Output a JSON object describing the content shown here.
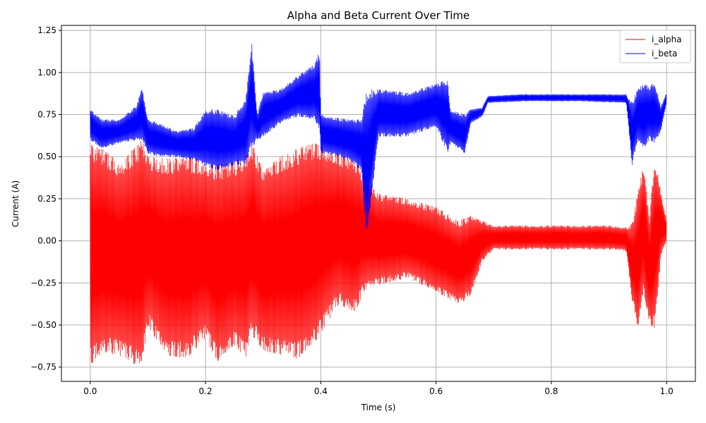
{
  "chart_data": {
    "type": "line",
    "title": "Alpha and Beta Current Over Time",
    "xlabel": "Time (s)",
    "ylabel": "Current (A)",
    "xlim": [
      -0.05,
      1.05
    ],
    "ylim": [
      -0.835,
      1.28
    ],
    "x_ticks": [
      0.0,
      0.2,
      0.4,
      0.6,
      0.8,
      1.0
    ],
    "x_tick_labels": [
      "0.0",
      "0.2",
      "0.4",
      "0.6",
      "0.8",
      "1.0"
    ],
    "y_ticks": [
      -0.75,
      -0.5,
      -0.25,
      0.0,
      0.25,
      0.5,
      0.75,
      1.0,
      1.25
    ],
    "y_tick_labels": [
      "−0.75",
      "−0.50",
      "−0.25",
      "0.00",
      "0.25",
      "0.50",
      "0.75",
      "1.00",
      "1.25"
    ],
    "grid": true,
    "legend_position": "top-right",
    "series": [
      {
        "name": "i_alpha",
        "color": "#ff0000",
        "envelope": {
          "t": [
            0.0,
            0.02,
            0.05,
            0.08,
            0.09,
            0.1,
            0.13,
            0.17,
            0.2,
            0.22,
            0.25,
            0.27,
            0.28,
            0.3,
            0.33,
            0.36,
            0.39,
            0.4,
            0.43,
            0.46,
            0.475,
            0.5,
            0.55,
            0.6,
            0.64,
            0.66,
            0.68,
            0.7,
            0.8,
            0.9,
            0.93,
            0.94,
            0.95,
            0.96,
            0.97,
            0.98,
            0.99,
            1.0
          ],
          "max": [
            0.57,
            0.55,
            0.47,
            0.56,
            0.6,
            0.5,
            0.49,
            0.5,
            0.47,
            0.45,
            0.47,
            0.52,
            0.59,
            0.42,
            0.5,
            0.55,
            0.58,
            0.57,
            0.52,
            0.47,
            0.4,
            0.28,
            0.25,
            0.2,
            0.12,
            0.15,
            0.12,
            0.09,
            0.09,
            0.09,
            0.08,
            0.1,
            0.28,
            0.45,
            0.15,
            0.5,
            0.3,
            0.12
          ],
          "min": [
            -0.74,
            -0.66,
            -0.68,
            -0.74,
            -0.72,
            -0.5,
            -0.69,
            -0.69,
            -0.58,
            -0.72,
            -0.62,
            -0.7,
            -0.56,
            -0.65,
            -0.68,
            -0.7,
            -0.6,
            -0.55,
            -0.38,
            -0.42,
            -0.3,
            -0.26,
            -0.22,
            -0.3,
            -0.38,
            -0.32,
            -0.12,
            -0.05,
            -0.05,
            -0.05,
            -0.06,
            -0.35,
            -0.52,
            -0.3,
            -0.5,
            -0.52,
            -0.1,
            0.0
          ]
        }
      },
      {
        "name": "i_beta",
        "color": "#0000ff",
        "envelope": {
          "t": [
            0.0,
            0.02,
            0.05,
            0.08,
            0.09,
            0.1,
            0.12,
            0.15,
            0.18,
            0.2,
            0.22,
            0.25,
            0.27,
            0.28,
            0.29,
            0.3,
            0.33,
            0.36,
            0.39,
            0.398,
            0.4,
            0.43,
            0.45,
            0.47,
            0.48,
            0.5,
            0.55,
            0.6,
            0.62,
            0.625,
            0.65,
            0.66,
            0.68,
            0.69,
            0.75,
            0.85,
            0.93,
            0.94,
            0.95,
            0.96,
            0.97,
            0.98,
            0.99,
            1.0
          ],
          "max": [
            0.78,
            0.72,
            0.72,
            0.8,
            0.91,
            0.72,
            0.7,
            0.65,
            0.67,
            0.78,
            0.78,
            0.74,
            0.85,
            1.19,
            0.75,
            0.88,
            0.9,
            0.98,
            1.05,
            1.13,
            0.75,
            0.73,
            0.72,
            0.72,
            0.9,
            0.9,
            0.88,
            0.93,
            0.96,
            0.78,
            0.75,
            0.78,
            0.79,
            0.86,
            0.87,
            0.87,
            0.87,
            0.82,
            0.9,
            0.93,
            0.92,
            0.94,
            0.8,
            0.88
          ],
          "min": [
            0.6,
            0.55,
            0.58,
            0.6,
            0.6,
            0.52,
            0.5,
            0.5,
            0.48,
            0.44,
            0.42,
            0.45,
            0.45,
            0.55,
            0.6,
            0.62,
            0.7,
            0.74,
            0.72,
            0.65,
            0.52,
            0.5,
            0.48,
            0.42,
            0.0,
            0.62,
            0.62,
            0.68,
            0.52,
            0.58,
            0.52,
            0.7,
            0.74,
            0.82,
            0.83,
            0.83,
            0.82,
            0.45,
            0.6,
            0.55,
            0.6,
            0.58,
            0.65,
            0.82
          ]
        }
      }
    ]
  }
}
